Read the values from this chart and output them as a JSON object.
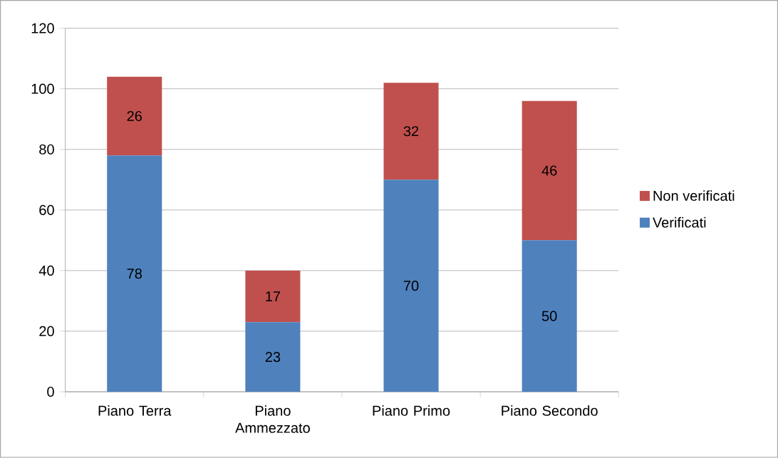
{
  "chart_data": {
    "type": "bar",
    "stacked": true,
    "categories": [
      "Piano Terra",
      "Piano Ammezzato",
      "Piano Primo",
      "Piano Secondo"
    ],
    "series": [
      {
        "name": "Verificati",
        "color": "#4f81bd",
        "values": [
          78,
          23,
          70,
          50
        ]
      },
      {
        "name": "Non verificati",
        "color": "#c0504d",
        "values": [
          26,
          17,
          32,
          46
        ]
      }
    ],
    "ylim": [
      0,
      120
    ],
    "yticks": [
      0,
      20,
      40,
      60,
      80,
      100,
      120
    ],
    "grid": "y",
    "legend": "right",
    "data_labels": true
  }
}
